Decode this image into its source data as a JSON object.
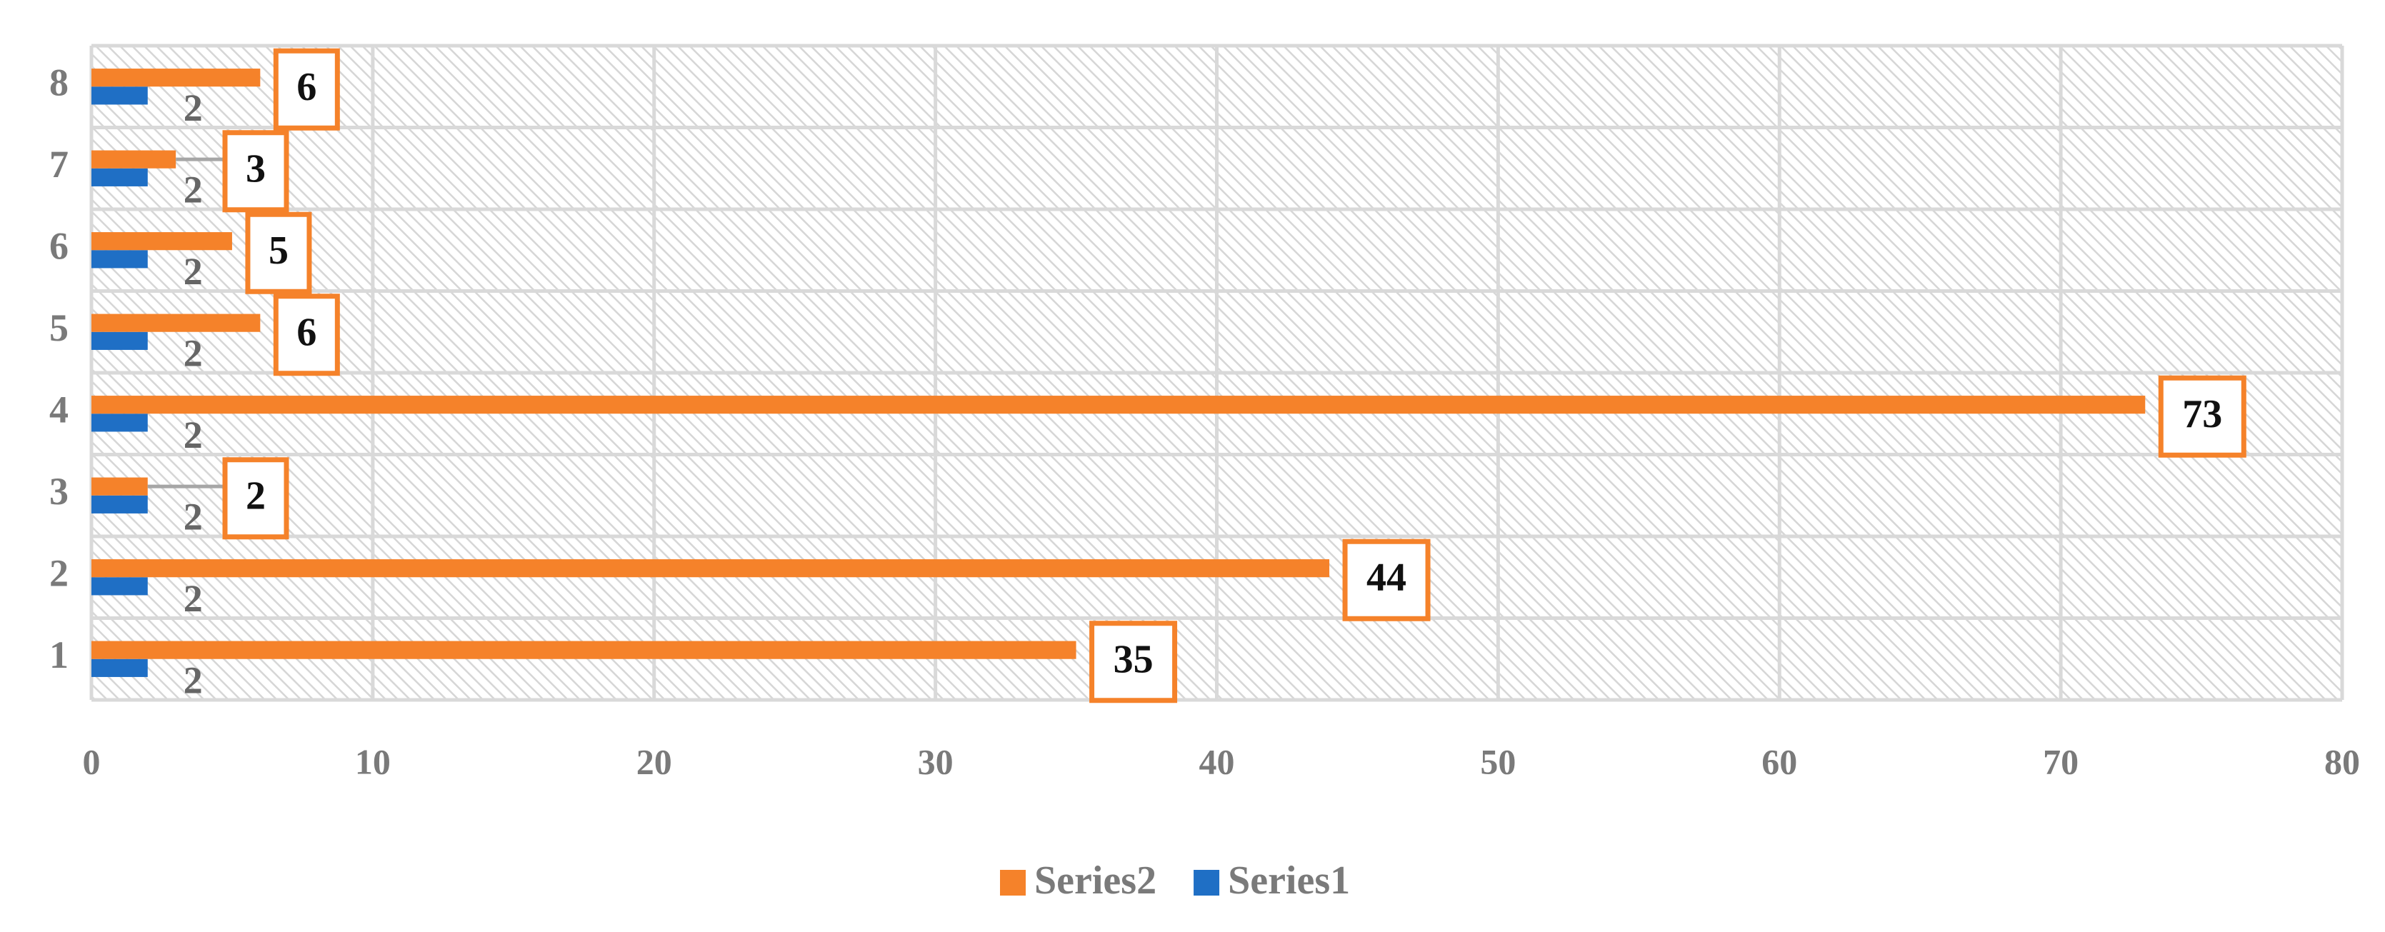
{
  "chart_data": {
    "type": "hbar",
    "categories": [
      "1",
      "2",
      "3",
      "4",
      "5",
      "6",
      "7",
      "8"
    ],
    "series": [
      {
        "name": "Series1",
        "color": "#1f6fc5",
        "values": [
          2,
          2,
          2,
          2,
          2,
          2,
          2,
          2
        ]
      },
      {
        "name": "Series2",
        "color": "#f5822a",
        "values": [
          35,
          44,
          2,
          73,
          6,
          5,
          3,
          6
        ]
      }
    ],
    "xlim": [
      0,
      80
    ],
    "xticks": [
      0,
      10,
      20,
      30,
      40,
      50,
      60,
      70,
      80
    ],
    "grid": true
  }
}
